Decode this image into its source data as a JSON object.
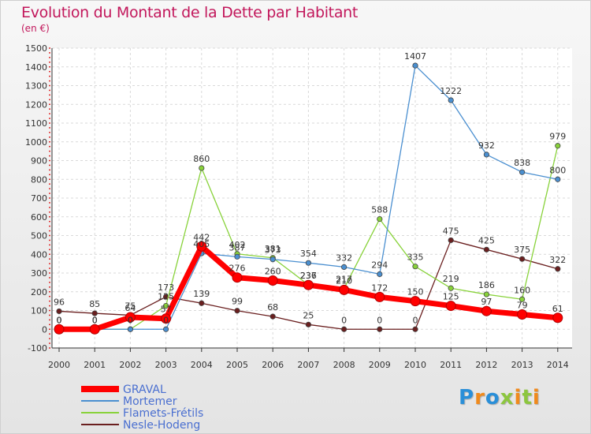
{
  "chart_data": {
    "type": "line",
    "title": "Evolution du Montant de la Dette par Habitant",
    "subtitle": "(en €)",
    "x": [
      "2000",
      "2001",
      "2002",
      "2003",
      "2004",
      "2005",
      "2006",
      "2007",
      "2008",
      "2009",
      "2010",
      "2011",
      "2012",
      "2013",
      "2014"
    ],
    "ylim": [
      -100,
      1500
    ],
    "yticks": [
      -100,
      0,
      100,
      200,
      300,
      400,
      500,
      600,
      700,
      800,
      900,
      1000,
      1100,
      1200,
      1300,
      1400,
      1500
    ],
    "grid": true,
    "legend_position": "bottom-left",
    "series": [
      {
        "name": "GRAVAL",
        "color": "#ff0000",
        "values": [
          0,
          0,
          64,
          57,
          442,
          276,
          260,
          236,
          210,
          172,
          150,
          125,
          97,
          79,
          61
        ],
        "labels": [
          "0",
          "0",
          "64",
          "57",
          "442",
          "276",
          "260",
          "236",
          "210",
          "172",
          "150",
          "125",
          "97",
          "79",
          "61"
        ]
      },
      {
        "name": "Mortemer",
        "color": "#4a8fd0",
        "values": [
          0,
          0,
          0,
          0,
          405,
          387,
          373,
          354,
          332,
          294,
          1407,
          1222,
          932,
          838,
          800
        ],
        "labels": [
          "0",
          "0",
          "0",
          "0",
          "405",
          "387",
          "373",
          "354",
          "332",
          "294",
          "1407",
          "1222",
          "932",
          "838",
          "800"
        ]
      },
      {
        "name": "Flamets-Frétils",
        "color": "#88d23a",
        "values": [
          0,
          0,
          0,
          125,
          860,
          402,
          381,
          237,
          217,
          588,
          335,
          219,
          186,
          160,
          979
        ],
        "labels": [
          "0",
          "0",
          "0",
          "125",
          "860",
          "402",
          "381",
          "237",
          "217",
          "588",
          "335",
          "219",
          "186",
          "160",
          "979"
        ]
      },
      {
        "name": "Nesle-Hodeng",
        "color": "#6a1f1f",
        "values": [
          96,
          85,
          75,
          173,
          139,
          99,
          68,
          25,
          0,
          0,
          0,
          475,
          425,
          375,
          322
        ],
        "labels": [
          "96",
          "85",
          "75",
          "173",
          "139",
          "99",
          "68",
          "25",
          "0",
          "0",
          "0",
          "475",
          "425",
          "375",
          "322"
        ]
      }
    ]
  },
  "logo": {
    "letters": [
      "P",
      "r",
      "o",
      "x",
      "i",
      "t",
      "i"
    ],
    "colors": [
      "#2a8fd8",
      "#f08a1c",
      "#2a8fd8",
      "#8cc63f",
      "#f08a1c",
      "#8cc63f",
      "#f08a1c"
    ]
  }
}
